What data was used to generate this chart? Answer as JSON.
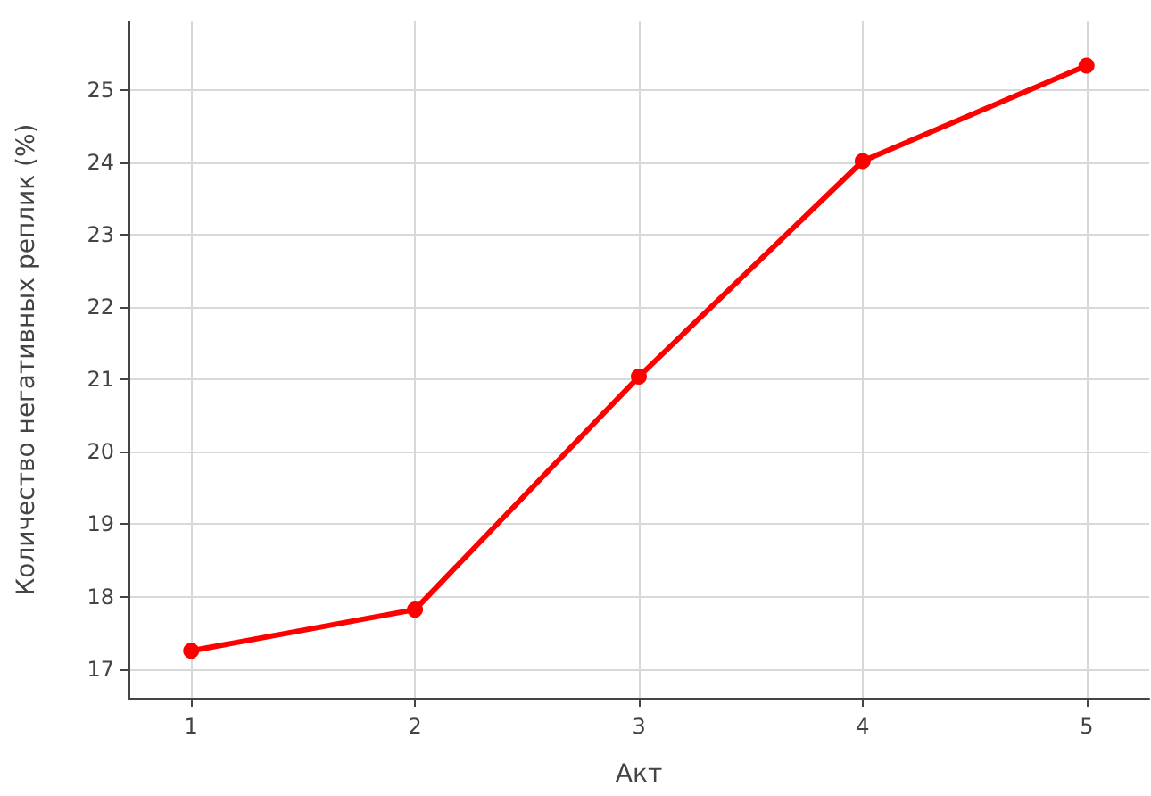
{
  "chart_data": {
    "type": "line",
    "xlabel": "Акт",
    "ylabel": "Количество негативных реплик (%)",
    "x": [
      1,
      2,
      3,
      4,
      5
    ],
    "series": [
      {
        "color": "#ff0000",
        "values": [
          17.25,
          17.82,
          21.04,
          24.02,
          25.34
        ]
      }
    ],
    "xlim": [
      0.72,
      5.28
    ],
    "xticks": [
      1,
      2,
      3,
      4,
      5
    ],
    "ylim": [
      16.6,
      25.95
    ],
    "yticks": [
      17,
      18,
      19,
      20,
      21,
      22,
      23,
      24,
      25
    ],
    "grid": true,
    "marker": "circle",
    "line_style": "solid"
  }
}
